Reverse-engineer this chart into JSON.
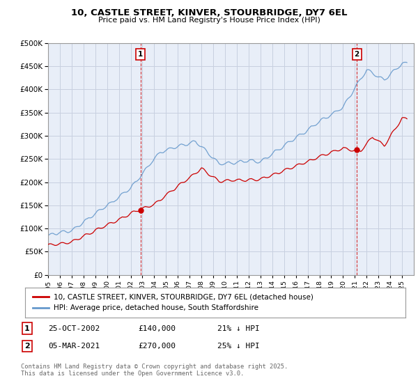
{
  "title_line1": "10, CASTLE STREET, KINVER, STOURBRIDGE, DY7 6EL",
  "title_line2": "Price paid vs. HM Land Registry's House Price Index (HPI)",
  "background_color": "#ffffff",
  "plot_bg_color": "#e8eef8",
  "grid_color": "#c8d0e0",
  "line1_color": "#cc0000",
  "line2_color": "#6699cc",
  "vline_color": "#cc0000",
  "legend_line1": "10, CASTLE STREET, KINVER, STOURBRIDGE, DY7 6EL (detached house)",
  "legend_line2": "HPI: Average price, detached house, South Staffordshire",
  "table_row1_date": "25-OCT-2002",
  "table_row1_price": "£140,000",
  "table_row1_hpi": "21% ↓ HPI",
  "table_row2_date": "05-MAR-2021",
  "table_row2_price": "£270,000",
  "table_row2_hpi": "25% ↓ HPI",
  "footer": "Contains HM Land Registry data © Crown copyright and database right 2025.\nThis data is licensed under the Open Government Licence v3.0.",
  "ylim_max": 500000,
  "xmin": 1995,
  "xmax": 2026,
  "t1": 2002.833,
  "t2": 2021.167,
  "sale1_price": 140000,
  "sale2_price": 270000
}
